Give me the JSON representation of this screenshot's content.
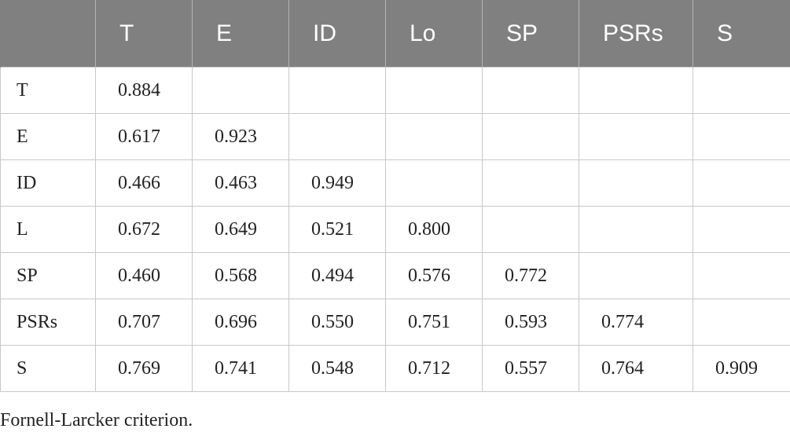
{
  "table": {
    "headers": [
      "",
      "T",
      "E",
      "ID",
      "Lo",
      "SP",
      "PSRs",
      "S"
    ],
    "rows": [
      [
        "T",
        "0.884",
        "",
        "",
        "",
        "",
        "",
        ""
      ],
      [
        "E",
        "0.617",
        "0.923",
        "",
        "",
        "",
        "",
        ""
      ],
      [
        "ID",
        "0.466",
        "0.463",
        "0.949",
        "",
        "",
        "",
        ""
      ],
      [
        "L",
        "0.672",
        "0.649",
        "0.521",
        "0.800",
        "",
        "",
        ""
      ],
      [
        "SP",
        "0.460",
        "0.568",
        "0.494",
        "0.576",
        "0.772",
        "",
        ""
      ],
      [
        "PSRs",
        "0.707",
        "0.696",
        "0.550",
        "0.751",
        "0.593",
        "0.774",
        ""
      ],
      [
        "S",
        "0.769",
        "0.741",
        "0.548",
        "0.712",
        "0.557",
        "0.764",
        "0.909"
      ]
    ]
  },
  "caption": "Fornell-Larcker criterion.",
  "colors": {
    "header_bg": "#808080",
    "header_text": "#ffffff",
    "grid": "#c8c8c8"
  }
}
